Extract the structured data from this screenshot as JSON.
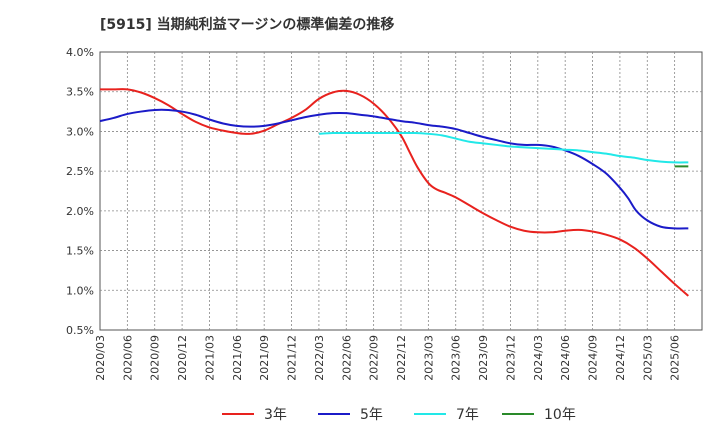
{
  "chart_data": {
    "type": "line",
    "title": "[5915]  当期純利益マージンの標準偏差の推移",
    "xlabel": "",
    "ylabel": "",
    "ylim": [
      0.5,
      4.0
    ],
    "y_ticks": [
      "0.5%",
      "1.0%",
      "1.5%",
      "2.0%",
      "2.5%",
      "3.0%",
      "3.5%",
      "4.0%"
    ],
    "y_tick_values": [
      0.5,
      1.0,
      1.5,
      2.0,
      2.5,
      3.0,
      3.5,
      4.0
    ],
    "categories": [
      "2020/03",
      "2020/06",
      "2020/09",
      "2020/12",
      "2021/03",
      "2021/06",
      "2021/09",
      "2021/12",
      "2022/03",
      "2022/06",
      "2022/09",
      "2022/12",
      "2023/03",
      "2023/06",
      "2023/09",
      "2023/12",
      "2024/03",
      "2024/06",
      "2024/09",
      "2024/12",
      "2025/03",
      "2025/06"
    ],
    "grid": true,
    "legend_position": "bottom",
    "series": [
      {
        "name": "3年",
        "color": "#e8221e",
        "points": [
          [
            0,
            3.53
          ],
          [
            0.5,
            3.53
          ],
          [
            1,
            3.53
          ],
          [
            1.5,
            3.49
          ],
          [
            2,
            3.42
          ],
          [
            2.5,
            3.33
          ],
          [
            3,
            3.22
          ],
          [
            3.5,
            3.12
          ],
          [
            4,
            3.05
          ],
          [
            4.5,
            3.01
          ],
          [
            5,
            2.98
          ],
          [
            5.5,
            2.97
          ],
          [
            6,
            3.01
          ],
          [
            6.5,
            3.09
          ],
          [
            7,
            3.17
          ],
          [
            7.5,
            3.27
          ],
          [
            8,
            3.41
          ],
          [
            8.5,
            3.49
          ],
          [
            9,
            3.51
          ],
          [
            9.5,
            3.46
          ],
          [
            10,
            3.35
          ],
          [
            10.5,
            3.18
          ],
          [
            11,
            2.95
          ],
          [
            11.3,
            2.75
          ],
          [
            11.6,
            2.55
          ],
          [
            12,
            2.35
          ],
          [
            12.3,
            2.27
          ],
          [
            12.6,
            2.23
          ],
          [
            13,
            2.17
          ],
          [
            13.5,
            2.07
          ],
          [
            14,
            1.97
          ],
          [
            14.5,
            1.88
          ],
          [
            15,
            1.8
          ],
          [
            15.5,
            1.75
          ],
          [
            16,
            1.73
          ],
          [
            16.5,
            1.73
          ],
          [
            17,
            1.75
          ],
          [
            17.5,
            1.76
          ],
          [
            18,
            1.74
          ],
          [
            18.5,
            1.7
          ],
          [
            19,
            1.64
          ],
          [
            19.5,
            1.54
          ],
          [
            20,
            1.4
          ],
          [
            20.5,
            1.24
          ],
          [
            21,
            1.08
          ],
          [
            21.5,
            0.93
          ]
        ]
      },
      {
        "name": "5年",
        "color": "#1b1bc8",
        "points": [
          [
            0,
            3.13
          ],
          [
            0.5,
            3.17
          ],
          [
            1,
            3.22
          ],
          [
            1.5,
            3.25
          ],
          [
            2,
            3.27
          ],
          [
            2.5,
            3.27
          ],
          [
            3,
            3.25
          ],
          [
            3.5,
            3.21
          ],
          [
            4,
            3.15
          ],
          [
            4.5,
            3.1
          ],
          [
            5,
            3.07
          ],
          [
            5.5,
            3.06
          ],
          [
            6,
            3.07
          ],
          [
            6.5,
            3.1
          ],
          [
            7,
            3.14
          ],
          [
            7.5,
            3.18
          ],
          [
            8,
            3.21
          ],
          [
            8.5,
            3.23
          ],
          [
            9,
            3.23
          ],
          [
            9.5,
            3.21
          ],
          [
            10,
            3.19
          ],
          [
            10.5,
            3.16
          ],
          [
            11,
            3.13
          ],
          [
            11.5,
            3.11
          ],
          [
            12,
            3.08
          ],
          [
            12.5,
            3.06
          ],
          [
            13,
            3.03
          ],
          [
            13.5,
            2.98
          ],
          [
            14,
            2.93
          ],
          [
            14.5,
            2.89
          ],
          [
            15,
            2.85
          ],
          [
            15.5,
            2.83
          ],
          [
            16,
            2.83
          ],
          [
            16.5,
            2.81
          ],
          [
            17,
            2.76
          ],
          [
            17.5,
            2.69
          ],
          [
            18,
            2.59
          ],
          [
            18.5,
            2.47
          ],
          [
            19,
            2.29
          ],
          [
            19.3,
            2.16
          ],
          [
            19.6,
            2.0
          ],
          [
            20,
            1.88
          ],
          [
            20.5,
            1.8
          ],
          [
            21,
            1.78
          ],
          [
            21.5,
            1.78
          ]
        ]
      },
      {
        "name": "7年",
        "color": "#22e8e8",
        "points": [
          [
            8,
            2.97
          ],
          [
            8.5,
            2.98
          ],
          [
            9,
            2.98
          ],
          [
            9.5,
            2.98
          ],
          [
            10,
            2.98
          ],
          [
            10.5,
            2.98
          ],
          [
            11,
            2.98
          ],
          [
            11.5,
            2.98
          ],
          [
            12,
            2.97
          ],
          [
            12.5,
            2.95
          ],
          [
            13,
            2.91
          ],
          [
            13.5,
            2.87
          ],
          [
            14,
            2.85
          ],
          [
            14.5,
            2.83
          ],
          [
            15,
            2.81
          ],
          [
            15.5,
            2.8
          ],
          [
            16,
            2.79
          ],
          [
            16.5,
            2.78
          ],
          [
            17,
            2.77
          ],
          [
            17.5,
            2.76
          ],
          [
            18,
            2.74
          ],
          [
            18.5,
            2.72
          ],
          [
            19,
            2.69
          ],
          [
            19.5,
            2.67
          ],
          [
            20,
            2.64
          ],
          [
            20.5,
            2.62
          ],
          [
            21,
            2.61
          ],
          [
            21.5,
            2.61
          ]
        ]
      },
      {
        "name": "10年",
        "color": "#2a8a2a",
        "points": [
          [
            21.0,
            2.56
          ],
          [
            21.5,
            2.56
          ]
        ]
      }
    ]
  }
}
